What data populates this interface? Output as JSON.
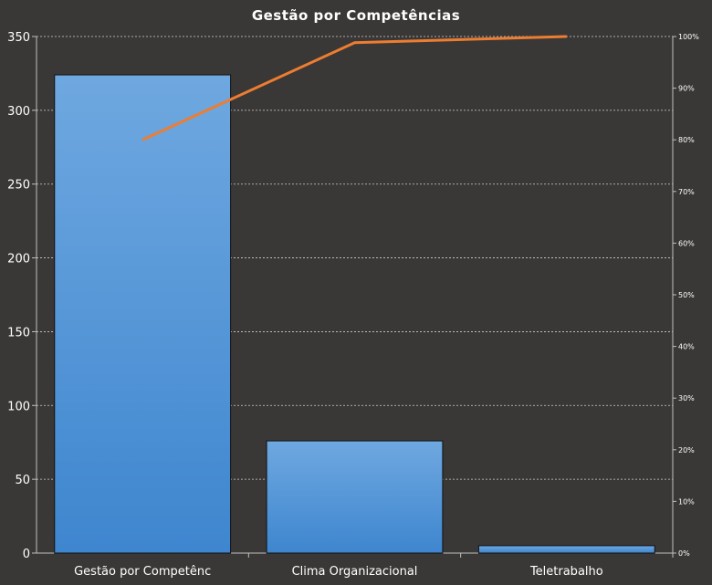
{
  "chart_data": {
    "type": "bar",
    "title": "Gestão por Competências",
    "categories": [
      "Gestão por Competênc",
      "Clima Organizacional",
      "Teletrabalho"
    ],
    "series": [
      {
        "type": "bar",
        "values": [
          324,
          76,
          5
        ]
      },
      {
        "type": "line",
        "axis": "right",
        "values": [
          0.8,
          0.988,
          1.0
        ]
      }
    ],
    "ylim": [
      0,
      350
    ],
    "yticks": [
      "0",
      "50",
      "100",
      "150",
      "200",
      "250",
      "300",
      "350"
    ],
    "y2lim": [
      0,
      1
    ],
    "y2ticks": [
      "0%",
      "10%",
      "20%",
      "30%",
      "40%",
      "50%",
      "60%",
      "70%",
      "80%",
      "90%",
      "100%"
    ],
    "grid": true,
    "colors": {
      "bar": "#4a90d9",
      "line": "#ed7d31",
      "background": "#3a3836",
      "grid": "#cfcfcf"
    }
  }
}
